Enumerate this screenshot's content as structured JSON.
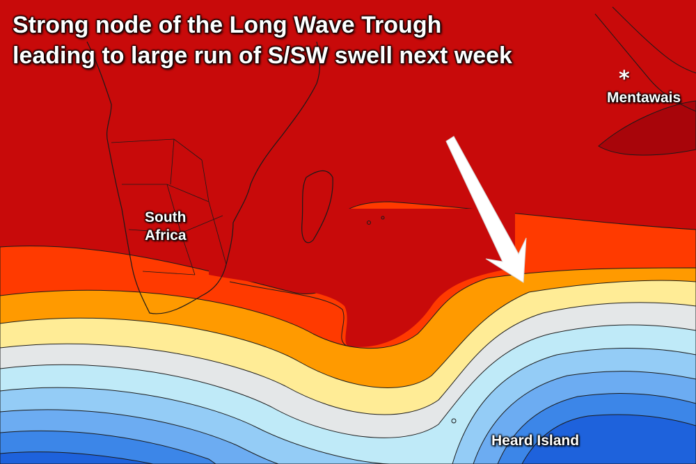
{
  "title": {
    "line1": "Strong node of the Long Wave Trough",
    "line2": "leading to large run of S/SW swell next week"
  },
  "labels": {
    "south_africa_line1": "South",
    "south_africa_line2": "Africa",
    "mentawais": "Mentawais",
    "mentawais_marker": "*",
    "heard_island": "Heard Island"
  },
  "colors": {
    "dark_red": "#c80a0a",
    "red_core": "#a8050a",
    "red_orange": "#ff3a00",
    "orange": "#ff9a00",
    "pale_yellow": "#ffec96",
    "light_gray": "#e4e7e8",
    "pale_blue": "#bfeaf8",
    "light_blue": "#94ccf6",
    "mid_blue": "#6cacf2",
    "blue": "#3c86e8",
    "deep_blue": "#1e62dc",
    "arrow": "#ffffff",
    "coastline": "#1a1a1a"
  }
}
